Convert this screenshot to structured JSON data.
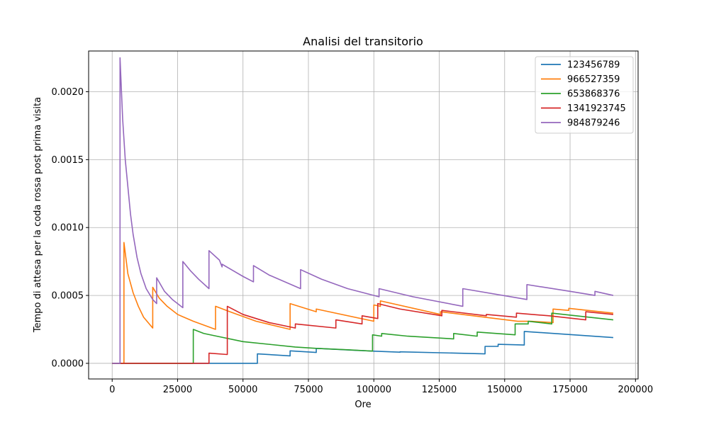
{
  "chart_data": {
    "type": "line",
    "title": "Analisi del transitorio",
    "xlabel": "Ore",
    "ylabel": "Tempo di attesa per la coda rossa post prima visita",
    "xlim": [
      -9000,
      201000
    ],
    "ylim": [
      -0.000115,
      0.0023
    ],
    "xticks": [
      0,
      25000,
      50000,
      75000,
      100000,
      125000,
      150000,
      175000,
      200000
    ],
    "xtick_labels": [
      "0",
      "25000",
      "50000",
      "75000",
      "100000",
      "125000",
      "150000",
      "175000",
      "200000"
    ],
    "yticks": [
      0,
      0.0005,
      0.001,
      0.0015,
      0.002
    ],
    "ytick_labels": [
      "0.0000",
      "0.0005",
      "0.0010",
      "0.0015",
      "0.0020"
    ],
    "grid": true,
    "legend_position": "top-right",
    "series": [
      {
        "name": "123456789",
        "color": "#1f77b4",
        "points": [
          [
            0,
            0
          ],
          [
            55500,
            0
          ],
          [
            55500,
            7e-05
          ],
          [
            68000,
            5.5e-05
          ],
          [
            68000,
            9.2e-05
          ],
          [
            78000,
            8e-05
          ],
          [
            78000,
            0.00011
          ],
          [
            99500,
            9e-05
          ],
          [
            110000,
            8.2e-05
          ],
          [
            110000,
            8.5e-05
          ],
          [
            142500,
            7e-05
          ],
          [
            142500,
            0.000125
          ],
          [
            147500,
            0.000125
          ],
          [
            147500,
            0.00014
          ],
          [
            157500,
            0.000135
          ],
          [
            157500,
            0.000235
          ],
          [
            191500,
            0.00019
          ]
        ]
      },
      {
        "name": "966527359",
        "color": "#ff7f0e",
        "points": [
          [
            0,
            0
          ],
          [
            4500,
            0
          ],
          [
            4500,
            0.00089
          ],
          [
            6000,
            0.00066
          ],
          [
            8000,
            0.00052
          ],
          [
            10000,
            0.00042
          ],
          [
            12000,
            0.00034
          ],
          [
            15500,
            0.00026
          ],
          [
            15500,
            0.00056
          ],
          [
            18000,
            0.00048
          ],
          [
            21000,
            0.00042
          ],
          [
            25000,
            0.00036
          ],
          [
            31000,
            0.00031
          ],
          [
            31000,
            0.00031
          ],
          [
            39500,
            0.00025
          ],
          [
            39500,
            0.00042
          ],
          [
            45000,
            0.00038
          ],
          [
            55000,
            0.00031
          ],
          [
            68000,
            0.00025
          ],
          [
            68000,
            0.00044
          ],
          [
            78000,
            0.00038
          ],
          [
            78000,
            0.0004
          ],
          [
            100000,
            0.00031
          ],
          [
            100000,
            0.00043
          ],
          [
            102500,
            0.00042
          ],
          [
            102500,
            0.00046
          ],
          [
            125500,
            0.00036
          ],
          [
            125500,
            0.00038
          ],
          [
            155000,
            0.00031
          ],
          [
            160000,
            0.00031
          ],
          [
            168500,
            0.0003
          ],
          [
            168500,
            0.0004
          ],
          [
            174500,
            0.00039
          ],
          [
            174500,
            0.000405
          ],
          [
            191500,
            0.00037
          ]
        ]
      },
      {
        "name": "653868376",
        "color": "#2ca02c",
        "points": [
          [
            0,
            0
          ],
          [
            31000,
            0
          ],
          [
            31000,
            0.00025
          ],
          [
            35000,
            0.00022
          ],
          [
            40000,
            0.0002
          ],
          [
            50000,
            0.00016
          ],
          [
            60000,
            0.00014
          ],
          [
            70000,
            0.00012
          ],
          [
            78000,
            0.00011
          ],
          [
            90000,
            0.0001
          ],
          [
            99500,
            9e-05
          ],
          [
            99500,
            0.00021
          ],
          [
            103000,
            0.0002
          ],
          [
            103000,
            0.00022
          ],
          [
            113000,
            0.0002
          ],
          [
            130500,
            0.00018
          ],
          [
            130500,
            0.00022
          ],
          [
            139500,
            0.0002
          ],
          [
            139500,
            0.00023
          ],
          [
            154000,
            0.00021
          ],
          [
            154000,
            0.00029
          ],
          [
            159000,
            0.00029
          ],
          [
            159000,
            0.00031
          ],
          [
            168000,
            0.00029
          ],
          [
            168000,
            0.00037
          ],
          [
            191500,
            0.00032
          ]
        ]
      },
      {
        "name": "1341923745",
        "color": "#d62728",
        "points": [
          [
            0,
            0
          ],
          [
            37000,
            0
          ],
          [
            37000,
            7.5e-05
          ],
          [
            44000,
            6.5e-05
          ],
          [
            44000,
            0.00042
          ],
          [
            50000,
            0.00036
          ],
          [
            60000,
            0.0003
          ],
          [
            70000,
            0.00026
          ],
          [
            70000,
            0.00029
          ],
          [
            85500,
            0.00026
          ],
          [
            85500,
            0.00032
          ],
          [
            95500,
            0.00029
          ],
          [
            95500,
            0.00035
          ],
          [
            101500,
            0.00033
          ],
          [
            101500,
            0.00044
          ],
          [
            110000,
            0.0004
          ],
          [
            126000,
            0.00035
          ],
          [
            126000,
            0.00039
          ],
          [
            143000,
            0.00035
          ],
          [
            143000,
            0.00036
          ],
          [
            154500,
            0.00034
          ],
          [
            154500,
            0.00037
          ],
          [
            167000,
            0.00035
          ],
          [
            167000,
            0.00035
          ],
          [
            181000,
            0.00032
          ],
          [
            181000,
            0.00038
          ],
          [
            191500,
            0.00036
          ]
        ]
      },
      {
        "name": "984879246",
        "color": "#9467bd",
        "points": [
          [
            0,
            0
          ],
          [
            3000,
            0
          ],
          [
            3000,
            0.00225
          ],
          [
            4000,
            0.0018
          ],
          [
            5000,
            0.0015
          ],
          [
            6000,
            0.0013
          ],
          [
            7000,
            0.0011
          ],
          [
            8000,
            0.00095
          ],
          [
            9500,
            0.00078
          ],
          [
            11000,
            0.00066
          ],
          [
            13000,
            0.00055
          ],
          [
            15500,
            0.00047
          ],
          [
            17000,
            0.00044
          ],
          [
            17000,
            0.00063
          ],
          [
            20000,
            0.00053
          ],
          [
            23000,
            0.00047
          ],
          [
            27000,
            0.00041
          ],
          [
            27000,
            0.00075
          ],
          [
            30000,
            0.00068
          ],
          [
            33000,
            0.00062
          ],
          [
            37000,
            0.00055
          ],
          [
            37000,
            0.00083
          ],
          [
            41000,
            0.00076
          ],
          [
            42000,
            0.00071
          ],
          [
            42000,
            0.00073
          ],
          [
            50000,
            0.00064
          ],
          [
            54000,
            0.0006
          ],
          [
            54000,
            0.00072
          ],
          [
            60000,
            0.00065
          ],
          [
            72000,
            0.00055
          ],
          [
            72000,
            0.00069
          ],
          [
            80000,
            0.00062
          ],
          [
            90000,
            0.00055
          ],
          [
            102000,
            0.00049
          ],
          [
            102000,
            0.00055
          ],
          [
            115000,
            0.00049
          ],
          [
            134000,
            0.00042
          ],
          [
            134000,
            0.00055
          ],
          [
            158500,
            0.00047
          ],
          [
            158500,
            0.00058
          ],
          [
            175000,
            0.00053
          ],
          [
            184500,
            0.0005
          ],
          [
            184500,
            0.00053
          ],
          [
            191500,
            0.0005
          ]
        ]
      }
    ]
  }
}
